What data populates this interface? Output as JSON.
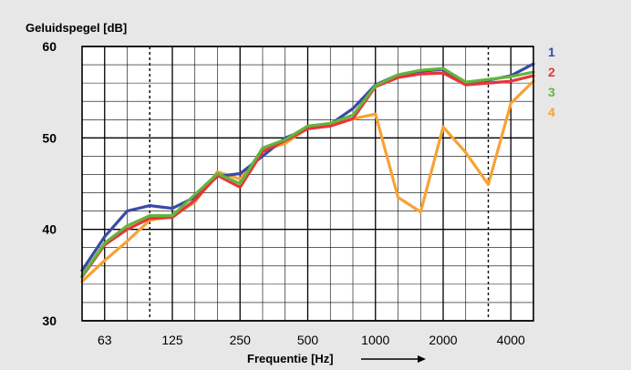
{
  "chart_data": {
    "type": "line",
    "ylabel": "Geluidspegel [dB]",
    "xlabel": "Frequentie [Hz]",
    "ylim": [
      30,
      60
    ],
    "y_ticks": [
      30,
      40,
      50,
      60
    ],
    "y_minor_step": 2,
    "x_scale": "log",
    "x": [
      50,
      63,
      80,
      100,
      125,
      160,
      200,
      250,
      315,
      400,
      500,
      630,
      800,
      1000,
      1250,
      1600,
      2000,
      2500,
      3150,
      4000,
      5000
    ],
    "x_tick_labels": [
      "63",
      "125",
      "250",
      "500",
      "1000",
      "2000",
      "4000"
    ],
    "x_dotted_lines": [
      100,
      3150
    ],
    "grid": true,
    "legend_position": "right",
    "series": [
      {
        "name": "1",
        "color": "#3a4aa6",
        "values": [
          35.5,
          39.2,
          42.0,
          42.6,
          42.3,
          43.5,
          45.8,
          46.1,
          48.0,
          50.0,
          51.0,
          51.5,
          53.2,
          55.8,
          56.9,
          57.3,
          57.5,
          56.0,
          56.3,
          56.8,
          58.1
        ]
      },
      {
        "name": "2",
        "color": "#e8343a",
        "values": [
          34.8,
          38.3,
          40.0,
          41.2,
          41.3,
          43.2,
          45.9,
          44.6,
          48.5,
          49.7,
          51.0,
          51.3,
          52.1,
          55.6,
          56.6,
          57.0,
          57.1,
          55.8,
          56.0,
          56.2,
          56.8
        ]
      },
      {
        "name": "3",
        "color": "#63b53c",
        "values": [
          34.9,
          38.5,
          40.4,
          41.5,
          41.5,
          43.8,
          46.1,
          45.0,
          48.9,
          49.8,
          51.3,
          51.6,
          52.5,
          55.7,
          56.9,
          57.4,
          57.6,
          56.1,
          56.4,
          56.7,
          57.2
        ]
      },
      {
        "name": "4",
        "color": "#f7a234",
        "values": [
          34.3,
          36.6,
          38.7,
          41.0,
          41.4,
          43.0,
          46.3,
          45.5,
          48.6,
          49.4,
          51.1,
          51.4,
          52.1,
          52.6,
          43.5,
          41.9,
          51.2,
          48.4,
          44.9,
          53.8,
          56.2
        ]
      }
    ]
  }
}
